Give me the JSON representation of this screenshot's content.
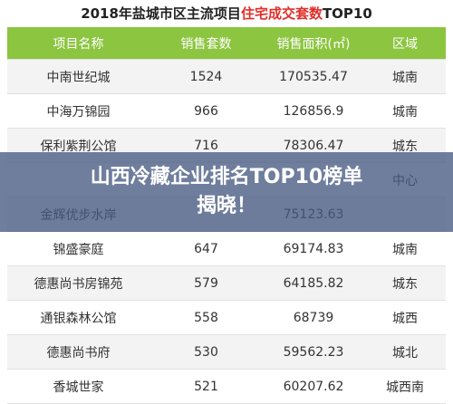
{
  "title": [
    "2018年盐城市区主流项目",
    "住宅成交套数",
    "TOP10"
  ],
  "table": {
    "header": [
      "项目名称",
      "销售套数",
      "销售面积(㎡)",
      "区域"
    ],
    "rows": [
      [
        "中南世纪城",
        "1524",
        "170535.47",
        "城南"
      ],
      [
        "中海万锦园",
        "966",
        "126856.9",
        "城南"
      ],
      [
        "保利紫荆公馆",
        "716",
        "78306.47",
        "城东"
      ],
      [
        null,
        null,
        null,
        "中心"
      ],
      [
        "金辉优步水岸",
        null,
        "75123.63",
        null
      ],
      [
        "锦盛豪庭",
        "647",
        "69174.83",
        "城南"
      ],
      [
        "德惠尚书房锦苑",
        "579",
        "64185.82",
        "城东"
      ],
      [
        "通银森林公馆",
        "558",
        "68739",
        "城西"
      ],
      [
        "德惠尚书府",
        "530",
        "59562.23",
        "城北"
      ],
      [
        "香城世家",
        "521",
        "60207.62",
        "城西南"
      ]
    ]
  },
  "banner": [
    "山西冷藏企业排名TOP10榜单",
    "揭晓！"
  ]
}
